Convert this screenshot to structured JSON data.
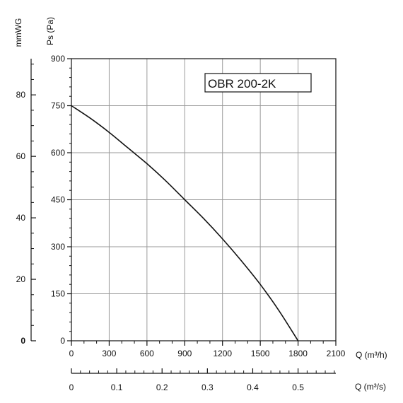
{
  "chart_data": {
    "type": "line",
    "title": "",
    "model_label": "OBR 200-2K",
    "xlabel": "Q (m³/h)",
    "xlabel_secondary": "Q (m³/s)",
    "ylabel": "Ps (Pa)",
    "ylabel_secondary": "mmWG",
    "xlim": [
      0,
      2100
    ],
    "ylim": [
      0,
      900
    ],
    "x_ticks": [
      0,
      300,
      600,
      900,
      1200,
      1500,
      1800,
      2100
    ],
    "x_tick_labels": [
      "0",
      "300",
      "600",
      "900",
      "1200",
      "1500",
      "1800",
      "2100"
    ],
    "y_ticks": [
      0,
      150,
      300,
      450,
      600,
      750,
      900
    ],
    "y_tick_labels": [
      "0",
      "150",
      "300",
      "450",
      "600",
      "750",
      "900"
    ],
    "x2_ticks": [
      0,
      0.1,
      0.2,
      0.3,
      0.4,
      0.5
    ],
    "x2_tick_labels": [
      "0",
      "0.1",
      "0.2",
      "0.3",
      "0.4",
      "0.5"
    ],
    "y2_ticks": [
      0,
      20,
      40,
      60,
      80
    ],
    "y2_tick_labels": [
      "0",
      "20",
      "40",
      "60",
      "80"
    ],
    "grid": true,
    "series": [
      {
        "x": [
          0,
          150,
          300,
          450,
          600,
          750,
          900,
          1050,
          1200,
          1350,
          1500,
          1650,
          1800
        ],
        "values": [
          750,
          710,
          665,
          615,
          565,
          510,
          450,
          390,
          325,
          255,
          180,
          95,
          0
        ]
      }
    ]
  },
  "colors": {
    "grid": "#9a9a9a",
    "axis": "#111111",
    "curve": "#111111"
  }
}
